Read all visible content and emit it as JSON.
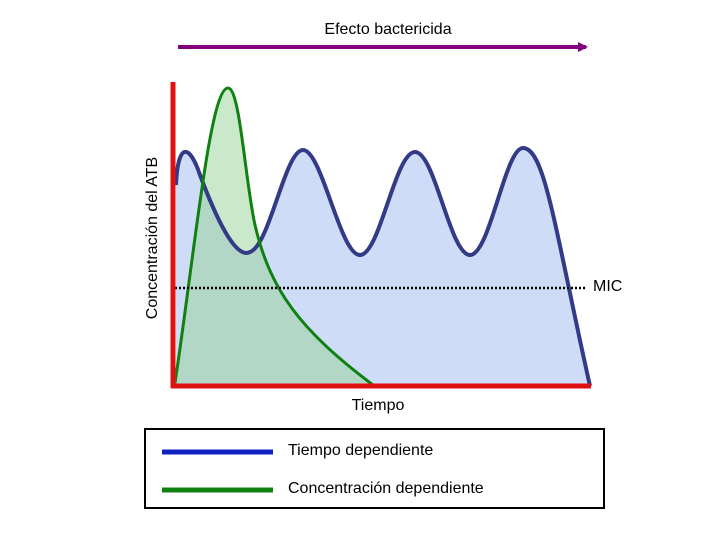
{
  "title": "Efecto bactericida",
  "y_axis_label": "Concentración del ATB",
  "x_axis_label": "Tiempo",
  "threshold_label": "MIC",
  "legend": [
    "Tiempo dependiente",
    "Concentración dependiente"
  ]
}
